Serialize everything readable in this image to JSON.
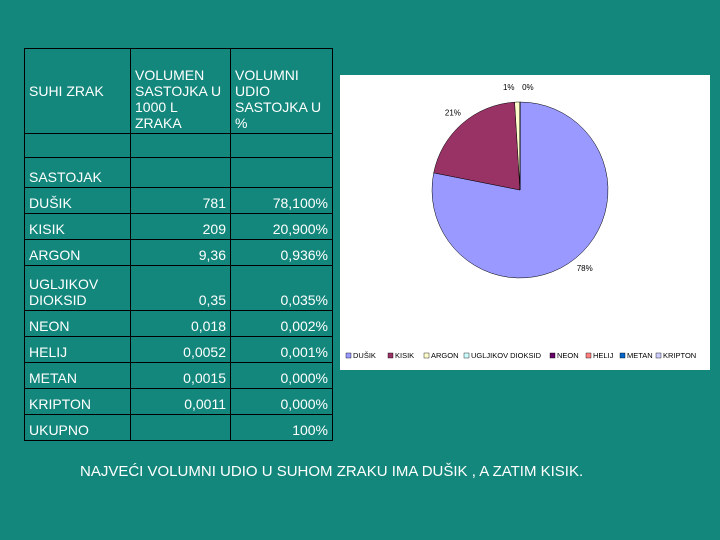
{
  "table": {
    "header": [
      "SUHI ZRAK",
      "VOLUMEN SASTOJKA U 1000 L ZRAKA",
      "VOLUMNI UDIO SASTOJKA U %"
    ],
    "rows": [
      [
        null,
        null,
        null
      ],
      [
        "SASTOJAK",
        null,
        null
      ],
      [
        "DUŠIK",
        "781",
        "78,100%"
      ],
      [
        "KISIK",
        "209",
        "20,900%"
      ],
      [
        "ARGON",
        "9,36",
        "0,936%"
      ],
      [
        "UGLJIKOV DIOKSID",
        "0,35",
        "0,035%"
      ],
      [
        "NEON",
        "0,018",
        "0,002%"
      ],
      [
        "HELIJ",
        "0,0052",
        "0,001%"
      ],
      [
        "METAN",
        "0,0015",
        "0,000%"
      ],
      [
        "KRIPTON",
        "0,0011",
        "0,000%"
      ],
      [
        "UKUPNO",
        null,
        "100%"
      ]
    ]
  },
  "chart_data": {
    "type": "pie",
    "categories": [
      "DUŠIK",
      "KISIK",
      "ARGON",
      "UGLJIKOV DIOKSID",
      "NEON",
      "HELIJ",
      "METAN",
      "KRIPTON"
    ],
    "values": [
      78.1,
      20.9,
      0.936,
      0.035,
      0.002,
      0.001,
      0,
      0
    ],
    "value_labels": [
      "78%",
      "21%",
      "1%",
      "0%",
      null,
      null,
      null,
      null
    ],
    "colors": [
      "#9999ff",
      "#993366",
      "#ffffcc",
      "#ccffff",
      "#660066",
      "#ff8080",
      "#0066cc",
      "#ccccff"
    ],
    "legend": "bottom"
  },
  "footer": "NAJVEĆI VOLUMNI UDIO U SUHOM ZRAKU IMA DUŠIK , A ZATIM KISIK."
}
